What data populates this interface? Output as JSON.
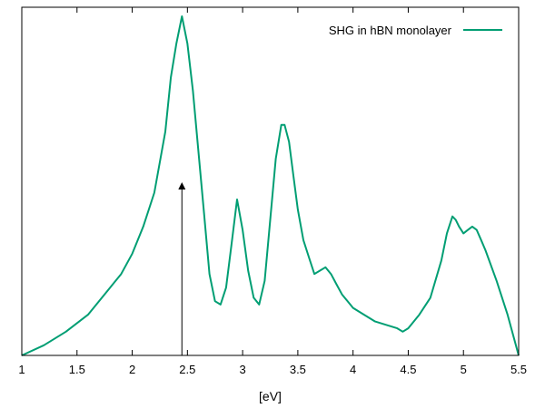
{
  "chart_data": {
    "type": "line",
    "title": "",
    "xlabel": "[eV]",
    "ylabel": "",
    "xlim": [
      1,
      5.5
    ],
    "ylim": [
      0,
      1
    ],
    "x_ticks": [
      1,
      1.5,
      2,
      2.5,
      3,
      3.5,
      4,
      4.5,
      5,
      5.5
    ],
    "x_tick_labels": [
      "1",
      "1.5",
      "2",
      "2.5",
      "3",
      "3.5",
      "4",
      "4.5",
      "5",
      "5.5"
    ],
    "y_tick_labels_shown": false,
    "grid": false,
    "legend_position": "top-right",
    "series": [
      {
        "name": "SHG in hBN monolayer",
        "color": "#009e73",
        "x": [
          1.0,
          1.2,
          1.4,
          1.6,
          1.8,
          1.9,
          2.0,
          2.1,
          2.2,
          2.3,
          2.35,
          2.4,
          2.45,
          2.5,
          2.55,
          2.6,
          2.65,
          2.7,
          2.75,
          2.8,
          2.85,
          2.9,
          2.95,
          3.0,
          3.05,
          3.1,
          3.15,
          3.2,
          3.25,
          3.3,
          3.35,
          3.38,
          3.42,
          3.46,
          3.5,
          3.55,
          3.6,
          3.65,
          3.7,
          3.75,
          3.8,
          3.85,
          3.9,
          4.0,
          4.1,
          4.2,
          4.3,
          4.4,
          4.45,
          4.5,
          4.55,
          4.6,
          4.7,
          4.8,
          4.85,
          4.9,
          4.93,
          4.96,
          5.0,
          5.04,
          5.08,
          5.12,
          5.16,
          5.2,
          5.3,
          5.4,
          5.5
        ],
        "y": [
          0.0,
          0.03,
          0.07,
          0.12,
          0.2,
          0.24,
          0.3,
          0.38,
          0.48,
          0.66,
          0.82,
          0.92,
          1.0,
          0.92,
          0.78,
          0.6,
          0.42,
          0.24,
          0.16,
          0.15,
          0.2,
          0.33,
          0.46,
          0.37,
          0.25,
          0.17,
          0.15,
          0.22,
          0.4,
          0.58,
          0.68,
          0.68,
          0.63,
          0.53,
          0.43,
          0.34,
          0.29,
          0.24,
          0.25,
          0.26,
          0.24,
          0.21,
          0.18,
          0.14,
          0.12,
          0.1,
          0.09,
          0.08,
          0.07,
          0.08,
          0.1,
          0.12,
          0.17,
          0.28,
          0.36,
          0.41,
          0.4,
          0.38,
          0.36,
          0.37,
          0.38,
          0.37,
          0.34,
          0.31,
          0.22,
          0.12,
          0.0
        ]
      }
    ],
    "annotations": [
      {
        "type": "arrow",
        "x": 2.45,
        "y_from": 0.0,
        "y_to": 0.5,
        "color": "#000000"
      }
    ]
  }
}
